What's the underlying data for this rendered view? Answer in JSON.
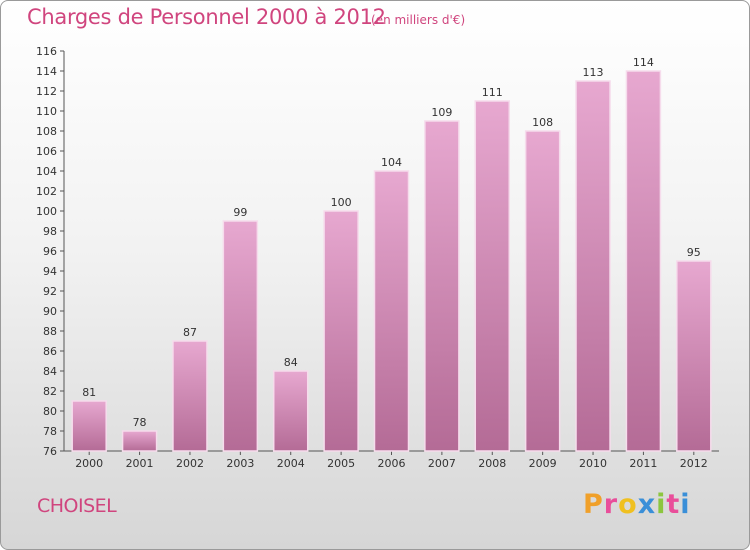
{
  "header": {
    "title": "Charges de Personnel 2000 à 2012",
    "subtitle": "(en milliers d'€)"
  },
  "footer": {
    "commune": "CHOISEL",
    "logo": [
      "P",
      "r",
      "o",
      "x",
      "i",
      "t",
      "i"
    ],
    "logo_colors": [
      "#f0a02a",
      "#e94e9a",
      "#f0c020",
      "#3a8fd8",
      "#8cc63f",
      "#e94e9a",
      "#3a8fd8"
    ]
  },
  "colors": {
    "bar_top": "#e7a8d0",
    "bar_bottom": "#b46b96",
    "bar_edge": "#f6dcec",
    "text": "#d0457e"
  },
  "chart_data": {
    "type": "bar",
    "title": "Charges de Personnel 2000 à 2012",
    "subtitle": "(en milliers d'€)",
    "categories": [
      "2000",
      "2001",
      "2002",
      "2003",
      "2004",
      "2005",
      "2006",
      "2007",
      "2008",
      "2009",
      "2010",
      "2011",
      "2012"
    ],
    "values": [
      81,
      78,
      87,
      99,
      84,
      100,
      104,
      109,
      111,
      108,
      113,
      114,
      95
    ],
    "ylim": [
      76,
      116
    ],
    "yticks": [
      76,
      78,
      80,
      82,
      84,
      86,
      88,
      90,
      92,
      94,
      96,
      98,
      100,
      102,
      104,
      106,
      108,
      110,
      112,
      114,
      116
    ],
    "grid": false
  }
}
